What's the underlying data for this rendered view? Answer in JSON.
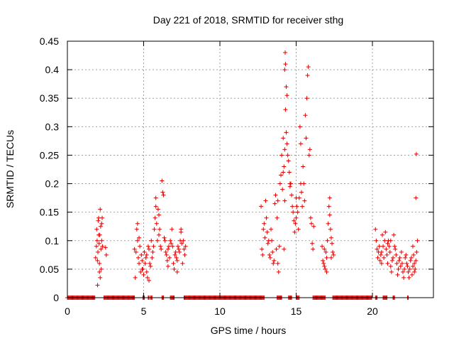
{
  "chart_data": {
    "type": "scatter",
    "title": "Day 221 of 2018, SRMTID for receiver sthg",
    "xlabel": "GPS time / hours",
    "ylabel": "SRMTID / TECUs",
    "xlim": [
      0,
      24
    ],
    "ylim": [
      0,
      0.45
    ],
    "x_ticks": [
      0,
      5,
      10,
      15,
      20
    ],
    "x_tick_labels": [
      "0",
      "5",
      "10",
      "15",
      "20"
    ],
    "y_ticks": [
      0,
      0.05,
      0.1,
      0.15,
      0.2,
      0.25,
      0.3,
      0.35,
      0.4,
      0.45
    ],
    "y_tick_labels": [
      "0",
      "0.05",
      "0.1",
      "0.15",
      "0.2",
      "0.25",
      "0.3",
      "0.35",
      "0.4",
      "0.45"
    ],
    "grid": true,
    "marker": "+",
    "color": "#dd0000",
    "series": [
      {
        "name": "SRMTID",
        "points": [
          [
            1.85,
            0.07
          ],
          [
            1.9,
            0.09
          ],
          [
            1.92,
            0.12
          ],
          [
            1.95,
            0.1
          ],
          [
            1.97,
            0.065
          ],
          [
            2.0,
            0.08
          ],
          [
            2.02,
            0.135
          ],
          [
            2.05,
            0.14
          ],
          [
            2.08,
            0.095
          ],
          [
            2.1,
            0.06
          ],
          [
            2.12,
            0.11
          ],
          [
            2.15,
            0.155
          ],
          [
            2.18,
            0.125
          ],
          [
            2.2,
            0.085
          ],
          [
            2.22,
            0.05
          ],
          [
            2.25,
            0.1
          ],
          [
            2.28,
            0.14
          ],
          [
            2.3,
            0.09
          ],
          [
            1.98,
            0.022
          ],
          [
            2.1,
            0.045
          ],
          [
            2.15,
            0.035
          ],
          [
            2.25,
            0.13
          ],
          [
            2.05,
            0.11
          ],
          [
            2.5,
            0.088
          ],
          [
            2.55,
            0.075
          ],
          [
            4.4,
            0.085
          ],
          [
            4.45,
            0.035
          ],
          [
            4.5,
            0.08
          ],
          [
            4.55,
            0.12
          ],
          [
            4.6,
            0.1
          ],
          [
            4.65,
            0.07
          ],
          [
            4.7,
            0.06
          ],
          [
            4.75,
            0.09
          ],
          [
            4.8,
            0.045
          ],
          [
            4.85,
            0.075
          ],
          [
            4.9,
            0.065
          ],
          [
            4.95,
            0.05
          ],
          [
            5.0,
            0.04
          ],
          [
            5.05,
            0.08
          ],
          [
            5.1,
            0.06
          ],
          [
            5.15,
            0.07
          ],
          [
            5.2,
            0.075
          ],
          [
            5.25,
            0.035
          ],
          [
            5.3,
            0.09
          ],
          [
            5.35,
            0.085
          ],
          [
            5.4,
            0.06
          ],
          [
            5.45,
            0.055
          ],
          [
            5.5,
            0.1
          ],
          [
            5.55,
            0.07
          ],
          [
            5.6,
            0.08
          ],
          [
            5.65,
            0.09
          ],
          [
            5.7,
            0.12
          ],
          [
            5.75,
            0.14
          ],
          [
            5.8,
            0.16
          ],
          [
            5.85,
            0.13
          ],
          [
            5.9,
            0.1
          ],
          [
            5.95,
            0.155
          ],
          [
            6.0,
            0.145
          ],
          [
            6.05,
            0.12
          ],
          [
            6.1,
            0.09
          ],
          [
            6.15,
            0.085
          ],
          [
            6.2,
            0.205
          ],
          [
            6.25,
            0.185
          ],
          [
            6.3,
            0.18
          ],
          [
            6.35,
            0.105
          ],
          [
            6.4,
            0.1
          ],
          [
            6.45,
            0.08
          ],
          [
            6.5,
            0.075
          ],
          [
            6.55,
            0.065
          ],
          [
            6.6,
            0.085
          ],
          [
            6.65,
            0.09
          ],
          [
            6.7,
            0.07
          ],
          [
            6.75,
            0.1
          ],
          [
            6.8,
            0.095
          ],
          [
            6.85,
            0.12
          ],
          [
            6.9,
            0.09
          ],
          [
            6.95,
            0.06
          ],
          [
            7.0,
            0.05
          ],
          [
            7.05,
            0.075
          ],
          [
            7.1,
            0.08
          ],
          [
            7.15,
            0.07
          ],
          [
            7.2,
            0.065
          ],
          [
            7.25,
            0.09
          ],
          [
            7.3,
            0.085
          ],
          [
            7.35,
            0.08
          ],
          [
            7.4,
            0.1
          ],
          [
            7.45,
            0.12
          ],
          [
            7.5,
            0.095
          ],
          [
            7.55,
            0.06
          ],
          [
            7.6,
            0.1
          ],
          [
            7.65,
            0.085
          ],
          [
            7.7,
            0.075
          ],
          [
            7.75,
            0.09
          ],
          [
            4.6,
            0.13
          ],
          [
            5.2,
            0.045
          ],
          [
            4.9,
            0.05
          ],
          [
            5.8,
            0.175
          ],
          [
            6.0,
            0.11
          ],
          [
            6.6,
            0.055
          ],
          [
            7.2,
            0.045
          ],
          [
            7.45,
            0.115
          ],
          [
            5.35,
            0.03
          ],
          [
            4.7,
            0.105
          ],
          [
            12.7,
            0.16
          ],
          [
            12.75,
            0.085
          ],
          [
            12.8,
            0.075
          ],
          [
            12.85,
            0.12
          ],
          [
            12.9,
            0.13
          ],
          [
            12.95,
            0.105
          ],
          [
            13.0,
            0.17
          ],
          [
            13.05,
            0.14
          ],
          [
            13.1,
            0.115
          ],
          [
            13.15,
            0.095
          ],
          [
            13.2,
            0.1
          ],
          [
            13.25,
            0.075
          ],
          [
            13.3,
            0.07
          ],
          [
            13.35,
            0.12
          ],
          [
            13.4,
            0.1
          ],
          [
            13.45,
            0.08
          ],
          [
            13.5,
            0.06
          ],
          [
            13.55,
            0.065
          ],
          [
            13.6,
            0.165
          ],
          [
            13.65,
            0.18
          ],
          [
            13.7,
            0.085
          ],
          [
            13.75,
            0.14
          ],
          [
            13.8,
            0.06
          ],
          [
            13.85,
            0.045
          ],
          [
            13.9,
            0.09
          ],
          [
            13.95,
            0.2
          ],
          [
            14.0,
            0.215
          ],
          [
            14.05,
            0.25
          ],
          [
            14.1,
            0.19
          ],
          [
            14.15,
            0.28
          ],
          [
            14.2,
            0.23
          ],
          [
            14.25,
            0.26
          ],
          [
            14.3,
            0.33
          ],
          [
            14.35,
            0.37
          ],
          [
            14.4,
            0.355
          ],
          [
            14.25,
            0.4
          ],
          [
            14.28,
            0.43
          ],
          [
            14.3,
            0.41
          ],
          [
            14.35,
            0.29
          ],
          [
            14.4,
            0.27
          ],
          [
            14.45,
            0.25
          ],
          [
            14.5,
            0.24
          ],
          [
            14.55,
            0.22
          ],
          [
            14.6,
            0.195
          ],
          [
            14.65,
            0.2
          ],
          [
            14.7,
            0.18
          ],
          [
            14.75,
            0.16
          ],
          [
            14.8,
            0.15
          ],
          [
            14.85,
            0.135
          ],
          [
            14.9,
            0.115
          ],
          [
            14.95,
            0.13
          ],
          [
            15.0,
            0.14
          ],
          [
            15.05,
            0.16
          ],
          [
            15.1,
            0.15
          ],
          [
            15.15,
            0.12
          ],
          [
            15.2,
            0.175
          ],
          [
            15.25,
            0.3
          ],
          [
            15.3,
            0.27
          ],
          [
            15.35,
            0.185
          ],
          [
            15.4,
            0.16
          ],
          [
            15.45,
            0.23
          ],
          [
            15.5,
            0.2
          ],
          [
            15.55,
            0.17
          ],
          [
            15.6,
            0.32
          ],
          [
            15.65,
            0.28
          ],
          [
            15.7,
            0.35
          ],
          [
            15.75,
            0.39
          ],
          [
            15.8,
            0.405
          ],
          [
            15.85,
            0.25
          ],
          [
            15.9,
            0.26
          ],
          [
            15.95,
            0.14
          ],
          [
            16.0,
            0.13
          ],
          [
            16.05,
            0.095
          ],
          [
            16.1,
            0.085
          ],
          [
            16.15,
            0.125
          ],
          [
            14.2,
            0.085
          ],
          [
            14.15,
            0.22
          ],
          [
            14.25,
            0.17
          ],
          [
            15.0,
            0.175
          ],
          [
            15.3,
            0.2
          ],
          [
            13.8,
            0.17
          ],
          [
            14.6,
            0.2
          ],
          [
            16.7,
            0.09
          ],
          [
            16.75,
            0.065
          ],
          [
            16.8,
            0.06
          ],
          [
            16.85,
            0.055
          ],
          [
            16.9,
            0.05
          ],
          [
            16.95,
            0.08
          ],
          [
            17.0,
            0.07
          ],
          [
            17.05,
            0.1
          ],
          [
            17.1,
            0.13
          ],
          [
            17.15,
            0.16
          ],
          [
            17.2,
            0.145
          ],
          [
            17.25,
            0.12
          ],
          [
            17.3,
            0.105
          ],
          [
            17.35,
            0.095
          ],
          [
            17.4,
            0.08
          ],
          [
            17.45,
            0.075
          ],
          [
            16.85,
            0.085
          ],
          [
            17.2,
            0.175
          ],
          [
            17.3,
            0.07
          ],
          [
            17.0,
            0.045
          ],
          [
            20.2,
            0.12
          ],
          [
            20.25,
            0.1
          ],
          [
            20.3,
            0.085
          ],
          [
            20.35,
            0.07
          ],
          [
            20.4,
            0.08
          ],
          [
            20.45,
            0.09
          ],
          [
            20.5,
            0.065
          ],
          [
            20.55,
            0.075
          ],
          [
            20.6,
            0.08
          ],
          [
            20.65,
            0.11
          ],
          [
            20.7,
            0.09
          ],
          [
            20.75,
            0.07
          ],
          [
            20.8,
            0.1
          ],
          [
            20.85,
            0.115
          ],
          [
            20.9,
            0.085
          ],
          [
            20.95,
            0.075
          ],
          [
            21.0,
            0.06
          ],
          [
            21.05,
            0.1
          ],
          [
            21.1,
            0.09
          ],
          [
            21.15,
            0.08
          ],
          [
            21.2,
            0.055
          ],
          [
            21.25,
            0.045
          ],
          [
            21.3,
            0.065
          ],
          [
            21.35,
            0.07
          ],
          [
            21.4,
            0.11
          ],
          [
            21.45,
            0.09
          ],
          [
            21.5,
            0.085
          ],
          [
            21.55,
            0.075
          ],
          [
            21.6,
            0.06
          ],
          [
            21.65,
            0.04
          ],
          [
            21.7,
            0.05
          ],
          [
            21.75,
            0.065
          ],
          [
            21.8,
            0.07
          ],
          [
            21.85,
            0.055
          ],
          [
            21.9,
            0.08
          ],
          [
            21.95,
            0.06
          ],
          [
            22.0,
            0.045
          ],
          [
            22.05,
            0.035
          ],
          [
            22.1,
            0.05
          ],
          [
            22.15,
            0.07
          ],
          [
            22.2,
            0.075
          ],
          [
            22.25,
            0.06
          ],
          [
            22.3,
            0.055
          ],
          [
            22.35,
            0.045
          ],
          [
            22.4,
            0.035
          ],
          [
            22.45,
            0.05
          ],
          [
            22.5,
            0.065
          ],
          [
            22.55,
            0.07
          ],
          [
            22.6,
            0.04
          ],
          [
            22.65,
            0.055
          ],
          [
            22.7,
            0.075
          ],
          [
            22.75,
            0.06
          ],
          [
            22.8,
            0.05
          ],
          [
            22.85,
            0.065
          ],
          [
            22.9,
            0.08
          ],
          [
            22.95,
            0.1
          ],
          [
            22.85,
            0.175
          ],
          [
            22.88,
            0.252
          ],
          [
            22.65,
            0.09
          ],
          [
            22.75,
            0.045
          ],
          [
            20.6,
            0.06
          ],
          [
            21.2,
            0.1
          ],
          [
            21.0,
            0.095
          ]
        ]
      },
      {
        "name": "zero baseline",
        "segments": [
          [
            0.0,
            1.8
          ],
          [
            2.4,
            4.4
          ],
          [
            4.95,
            5.05
          ],
          [
            5.3,
            5.35
          ],
          [
            5.45,
            5.55
          ],
          [
            6.2,
            6.3
          ],
          [
            6.75,
            7.0
          ],
          [
            7.65,
            12.9
          ],
          [
            13.75,
            14.05
          ],
          [
            14.5,
            14.7
          ],
          [
            15.0,
            15.2
          ],
          [
            16.1,
            16.9
          ],
          [
            17.4,
            19.95
          ],
          [
            20.2,
            20.3
          ],
          [
            20.7,
            20.95
          ],
          [
            21.35,
            21.45
          ],
          [
            22.3,
            22.35
          ]
        ],
        "value": 0,
        "step": 0.05
      }
    ]
  }
}
